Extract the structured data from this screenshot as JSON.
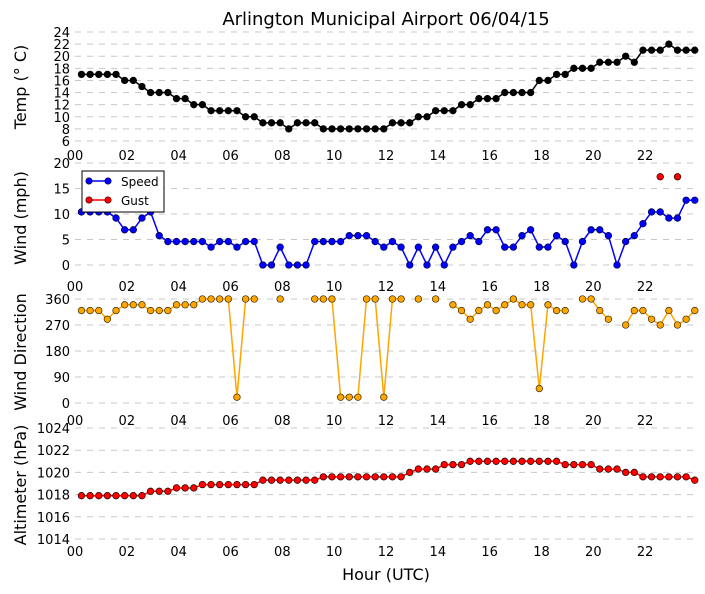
{
  "chart_data": [
    {
      "type": "line",
      "title": "Arlington Municipal Airport 06/04/15",
      "ylabel": "Temp ($^\\circ$C)",
      "ylabel_display": "Temp (° C)",
      "ylim": [
        6,
        24
      ],
      "yticks": [
        "24",
        "22",
        "20",
        "18",
        "16",
        "14",
        "12",
        "10",
        "8",
        "6"
      ],
      "xlim": [
        0,
        24
      ],
      "xticks": [
        "00",
        "02",
        "04",
        "06",
        "08",
        "10",
        "12",
        "14",
        "16",
        "18",
        "20",
        "22"
      ],
      "grid": true,
      "color": "#000000",
      "series": [
        {
          "name": "Temp",
          "values": [
            17,
            17,
            17,
            17,
            17,
            16,
            16,
            15,
            14,
            14,
            14,
            13,
            13,
            12,
            12,
            11,
            11,
            11,
            11,
            10,
            10,
            9,
            9,
            9,
            8,
            9,
            9,
            9,
            8,
            8,
            8,
            8,
            8,
            8,
            8,
            8,
            9,
            9,
            9,
            10,
            10,
            11,
            11,
            11,
            12,
            12,
            13,
            13,
            13,
            14,
            14,
            14,
            14,
            16,
            16,
            17,
            17,
            18,
            18,
            18,
            19,
            19,
            19,
            20,
            19,
            21,
            21,
            21,
            22,
            21,
            21,
            21
          ]
        }
      ]
    },
    {
      "type": "line",
      "ylabel": "Wind (mph)",
      "ylim": [
        -2,
        20
      ],
      "yticks": [
        "20",
        "15",
        "10",
        "5",
        "0"
      ],
      "xlim": [
        0,
        24
      ],
      "xticks": [
        "00",
        "02",
        "04",
        "06",
        "08",
        "10",
        "12",
        "14",
        "16",
        "18",
        "20",
        "22"
      ],
      "grid": true,
      "legend": {
        "placement": "upper-left",
        "entries": [
          "Speed",
          "Gust"
        ]
      },
      "series": [
        {
          "name": "Speed",
          "color": "#0000ff",
          "values": [
            10.4,
            10.4,
            10.4,
            10.4,
            9.2,
            6.9,
            6.9,
            9.2,
            10.4,
            5.75,
            4.6,
            4.6,
            4.6,
            4.6,
            4.6,
            3.5,
            4.6,
            4.6,
            3.5,
            4.6,
            4.6,
            0,
            0,
            3.5,
            0,
            0,
            0,
            4.6,
            4.6,
            4.6,
            4.6,
            5.75,
            5.75,
            5.75,
            4.6,
            3.5,
            4.6,
            3.5,
            0,
            3.5,
            0,
            3.5,
            0,
            3.5,
            4.6,
            5.75,
            4.6,
            6.9,
            6.9,
            3.5,
            3.5,
            5.75,
            6.9,
            3.5,
            3.5,
            5.75,
            4.6,
            0,
            4.6,
            6.9,
            6.9,
            5.75,
            0,
            4.6,
            5.75,
            8.1,
            10.4,
            10.4,
            9.2,
            9.2,
            12.7,
            12.7
          ]
        },
        {
          "name": "Gust",
          "color": "#ff0000",
          "values": [
            null,
            null,
            null,
            null,
            null,
            null,
            null,
            null,
            null,
            null,
            null,
            null,
            null,
            null,
            null,
            null,
            null,
            null,
            null,
            null,
            null,
            null,
            null,
            null,
            null,
            null,
            null,
            null,
            null,
            null,
            null,
            null,
            null,
            null,
            null,
            null,
            null,
            null,
            null,
            null,
            null,
            null,
            null,
            null,
            null,
            null,
            null,
            null,
            null,
            null,
            null,
            null,
            null,
            null,
            null,
            null,
            null,
            null,
            null,
            null,
            null,
            null,
            null,
            null,
            null,
            null,
            null,
            17.3,
            null,
            17.3,
            null,
            null
          ]
        }
      ]
    },
    {
      "type": "line",
      "ylabel": "Wind Direction",
      "ylim": [
        0,
        360
      ],
      "yticks": [
        "360",
        "270",
        "180",
        "90",
        "0"
      ],
      "xlim": [
        0,
        24
      ],
      "xticks": [
        "00",
        "02",
        "04",
        "06",
        "08",
        "10",
        "12",
        "14",
        "16",
        "18",
        "20",
        "22"
      ],
      "grid": true,
      "color": "#ffa500",
      "series": [
        {
          "name": "Direction",
          "values": [
            320,
            320,
            320,
            290,
            320,
            340,
            340,
            340,
            320,
            320,
            320,
            340,
            340,
            340,
            360,
            360,
            360,
            360,
            20,
            360,
            360,
            null,
            null,
            360,
            null,
            null,
            null,
            360,
            360,
            360,
            20,
            20,
            20,
            360,
            360,
            20,
            360,
            360,
            null,
            360,
            null,
            360,
            null,
            340,
            320,
            290,
            320,
            340,
            320,
            340,
            360,
            340,
            340,
            50,
            340,
            320,
            320,
            null,
            360,
            360,
            320,
            290,
            null,
            270,
            320,
            320,
            290,
            270,
            320,
            270,
            290,
            320
          ]
        }
      ]
    },
    {
      "type": "line",
      "ylabel": "Altimeter (hPa)",
      "xlabel": "Hour (UTC)",
      "ylim": [
        1014,
        1024
      ],
      "yticks": [
        "1024",
        "1022",
        "1020",
        "1018",
        "1016",
        "1014"
      ],
      "xlim": [
        0,
        24
      ],
      "xticks": [
        "00",
        "02",
        "04",
        "06",
        "08",
        "10",
        "12",
        "14",
        "16",
        "18",
        "20",
        "22"
      ],
      "grid": true,
      "color": "#ff0000",
      "series": [
        {
          "name": "Altimeter",
          "values": [
            1017.9,
            1017.9,
            1017.9,
            1017.9,
            1017.9,
            1017.9,
            1017.9,
            1017.9,
            1018.3,
            1018.3,
            1018.3,
            1018.6,
            1018.6,
            1018.6,
            1018.9,
            1018.9,
            1018.9,
            1018.9,
            1018.9,
            1018.9,
            1018.9,
            1019.3,
            1019.3,
            1019.3,
            1019.3,
            1019.3,
            1019.3,
            1019.3,
            1019.6,
            1019.6,
            1019.6,
            1019.6,
            1019.6,
            1019.6,
            1019.6,
            1019.6,
            1019.6,
            1019.6,
            1020.0,
            1020.3,
            1020.3,
            1020.3,
            1020.7,
            1020.7,
            1020.7,
            1021.0,
            1021.0,
            1021.0,
            1021.0,
            1021.0,
            1021.0,
            1021.0,
            1021.0,
            1021.0,
            1021.0,
            1021.0,
            1020.7,
            1020.7,
            1020.7,
            1020.7,
            1020.3,
            1020.3,
            1020.3,
            1020.0,
            1020.0,
            1019.6,
            1019.6,
            1019.6,
            1019.6,
            1019.6,
            1019.6,
            1019.3
          ]
        }
      ]
    }
  ],
  "time_hours": {
    "start": 0.25,
    "step_hours": 0.3333,
    "count": 72
  }
}
